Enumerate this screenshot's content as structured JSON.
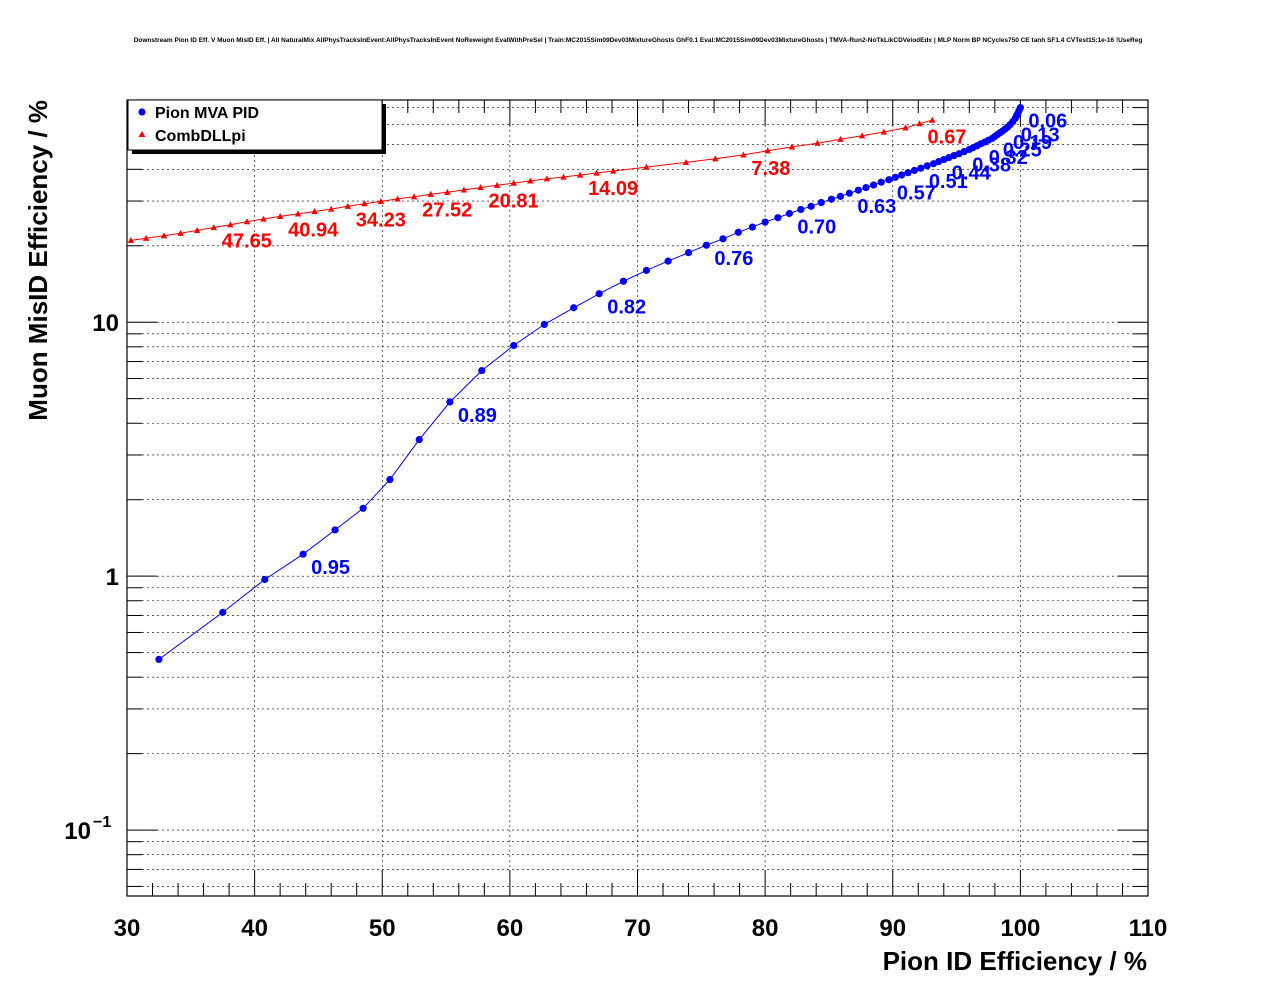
{
  "chart_data": {
    "type": "scatter",
    "title": "Downstream Pion ID Eff. V Muon MisID Eff. | All NaturalMix AllPhysTracksInEvent:AllPhysTracksInEvent NoReweight EvalWithPreSel | Train:MC2015Sim09Dev03MixtureGhosts GhF0.1 Eval:MC2015Sim09Dev03MixtureGhosts | TMVA-Run2-NoTkLikCDVelodEdx | MLP Norm BP NCycles750 CE tanh SF1.4 CVTest15:1e-16 !UseReg",
    "xlabel": "Pion ID Efficiency / %",
    "ylabel": "Muon MisID Efficiency / %",
    "xlim": [
      30,
      110
    ],
    "ylim": [
      0.055,
      75
    ],
    "yscale": "log",
    "grid": true,
    "legend_position": "top-left",
    "x_ticks": [
      "30",
      "40",
      "50",
      "60",
      "70",
      "80",
      "90",
      "100",
      "110"
    ],
    "y_ticks": [
      {
        "value": 0.1,
        "label": "10",
        "exp": "−1"
      },
      {
        "value": 1,
        "label": "1",
        "exp": ""
      },
      {
        "value": 10,
        "label": "10",
        "exp": ""
      }
    ],
    "series": [
      {
        "name": "Pion MVA PID",
        "color": "#0000ff",
        "marker": "circle",
        "points": [
          [
            32.5,
            0.47
          ],
          [
            37.5,
            0.72
          ],
          [
            40.8,
            0.97
          ],
          [
            43.8,
            1.22
          ],
          [
            46.3,
            1.52
          ],
          [
            48.5,
            1.85
          ],
          [
            50.6,
            2.4
          ],
          [
            52.9,
            3.45
          ],
          [
            55.3,
            4.85
          ],
          [
            57.8,
            6.45
          ],
          [
            60.3,
            8.1
          ],
          [
            62.7,
            9.8
          ],
          [
            65.0,
            11.4
          ],
          [
            67.0,
            12.95
          ],
          [
            68.9,
            14.5
          ],
          [
            70.7,
            16.0
          ],
          [
            72.4,
            17.4
          ],
          [
            74.0,
            18.8
          ],
          [
            75.4,
            20.1
          ],
          [
            76.7,
            21.3
          ],
          [
            77.9,
            22.6
          ],
          [
            79.0,
            23.7
          ],
          [
            80.0,
            24.8
          ],
          [
            81.0,
            25.8
          ],
          [
            81.9,
            26.8
          ],
          [
            82.8,
            27.8
          ],
          [
            83.6,
            28.6
          ],
          [
            84.4,
            29.6
          ],
          [
            85.2,
            30.5
          ],
          [
            85.9,
            31.3
          ],
          [
            86.6,
            32.2
          ],
          [
            87.3,
            33.1
          ],
          [
            87.9,
            33.9
          ],
          [
            88.5,
            34.7
          ],
          [
            89.1,
            35.6
          ],
          [
            89.7,
            36.4
          ],
          [
            90.2,
            37.2
          ],
          [
            90.7,
            38.0
          ],
          [
            91.2,
            38.8
          ],
          [
            91.7,
            39.6
          ],
          [
            92.2,
            40.4
          ],
          [
            92.7,
            41.3
          ],
          [
            93.2,
            42.1
          ],
          [
            93.6,
            42.9
          ],
          [
            94.0,
            43.7
          ],
          [
            94.4,
            44.5
          ],
          [
            94.8,
            45.3
          ],
          [
            95.2,
            46.1
          ],
          [
            95.6,
            47.0
          ],
          [
            96.0,
            47.9
          ],
          [
            96.3,
            48.7
          ],
          [
            96.6,
            49.5
          ],
          [
            96.9,
            50.4
          ],
          [
            97.2,
            51.2
          ],
          [
            97.5,
            52.1
          ],
          [
            97.8,
            53.0
          ],
          [
            98.0,
            53.9
          ],
          [
            98.2,
            54.8
          ],
          [
            98.4,
            55.7
          ],
          [
            98.6,
            56.6
          ],
          [
            98.8,
            57.6
          ],
          [
            99.0,
            58.6
          ],
          [
            99.2,
            60.0
          ],
          [
            99.4,
            61.6
          ],
          [
            99.6,
            63.5
          ],
          [
            99.7,
            65.0
          ],
          [
            99.8,
            66.5
          ],
          [
            99.9,
            68.2
          ],
          [
            100.0,
            70.0
          ]
        ],
        "labels": [
          {
            "text": "0.95",
            "x": 43.8,
            "y": 1.22
          },
          {
            "text": "0.89",
            "x": 55.3,
            "y": 4.85
          },
          {
            "text": "0.82",
            "x": 67.0,
            "y": 12.95
          },
          {
            "text": "0.76",
            "x": 75.4,
            "y": 20.1
          },
          {
            "text": "0.70",
            "x": 81.9,
            "y": 26.8
          },
          {
            "text": "0.63",
            "x": 86.6,
            "y": 32.2
          },
          {
            "text": "0.57",
            "x": 89.7,
            "y": 36.4
          },
          {
            "text": "0.51",
            "x": 92.2,
            "y": 40.4
          },
          {
            "text": "0.44",
            "x": 94.0,
            "y": 43.7
          },
          {
            "text": "0.38",
            "x": 95.6,
            "y": 47.0
          },
          {
            "text": "0.32",
            "x": 96.9,
            "y": 50.4
          },
          {
            "text": "0.25",
            "x": 98.0,
            "y": 53.9
          },
          {
            "text": "0.19",
            "x": 98.8,
            "y": 57.6
          },
          {
            "text": "0.13",
            "x": 99.4,
            "y": 61.6
          },
          {
            "text": "0.06",
            "x": 100.0,
            "y": 70.0
          }
        ]
      },
      {
        "name": "CombDLLpi",
        "color": "#ff0000",
        "marker": "triangle",
        "points": [
          [
            30.3,
            21.0
          ],
          [
            31.5,
            21.4
          ],
          [
            32.9,
            21.9
          ],
          [
            34.2,
            22.4
          ],
          [
            35.5,
            23.0
          ],
          [
            36.8,
            23.6
          ],
          [
            38.1,
            24.2
          ],
          [
            39.4,
            24.9
          ],
          [
            40.7,
            25.5
          ],
          [
            42.0,
            26.1
          ],
          [
            43.4,
            26.7
          ],
          [
            44.7,
            27.3
          ],
          [
            46.0,
            27.9
          ],
          [
            47.3,
            28.6
          ],
          [
            48.6,
            29.3
          ],
          [
            49.9,
            29.9
          ],
          [
            51.2,
            30.6
          ],
          [
            52.5,
            31.2
          ],
          [
            53.8,
            31.9
          ],
          [
            55.1,
            32.5
          ],
          [
            56.4,
            33.2
          ],
          [
            57.7,
            33.9
          ],
          [
            59.0,
            34.6
          ],
          [
            60.3,
            35.3
          ],
          [
            61.6,
            36.0
          ],
          [
            62.9,
            36.7
          ],
          [
            64.2,
            37.3
          ],
          [
            65.5,
            38.0
          ],
          [
            66.8,
            38.7
          ],
          [
            68.1,
            39.4
          ],
          [
            70.7,
            40.8
          ],
          [
            73.8,
            42.6
          ],
          [
            76.1,
            44.0
          ],
          [
            78.3,
            45.6
          ],
          [
            80.2,
            47.3
          ],
          [
            82.1,
            49.0
          ],
          [
            84.1,
            50.7
          ],
          [
            85.9,
            52.5
          ],
          [
            87.6,
            54.2
          ],
          [
            89.3,
            56.1
          ],
          [
            91.0,
            58.3
          ],
          [
            92.1,
            60.5
          ],
          [
            93.1,
            62.5
          ]
        ],
        "labels": [
          {
            "text": "47.65",
            "x": 36.8,
            "y": 23.6
          },
          {
            "text": "40.94",
            "x": 42.0,
            "y": 26.1
          },
          {
            "text": "34.23",
            "x": 47.3,
            "y": 28.6
          },
          {
            "text": "27.52",
            "x": 52.5,
            "y": 31.2
          },
          {
            "text": "20.81",
            "x": 57.7,
            "y": 33.9
          },
          {
            "text": "14.09",
            "x": 65.5,
            "y": 38.0
          },
          {
            "text": "7.38",
            "x": 78.3,
            "y": 45.6
          },
          {
            "text": "0.67",
            "x": 92.1,
            "y": 60.5
          }
        ]
      }
    ]
  }
}
